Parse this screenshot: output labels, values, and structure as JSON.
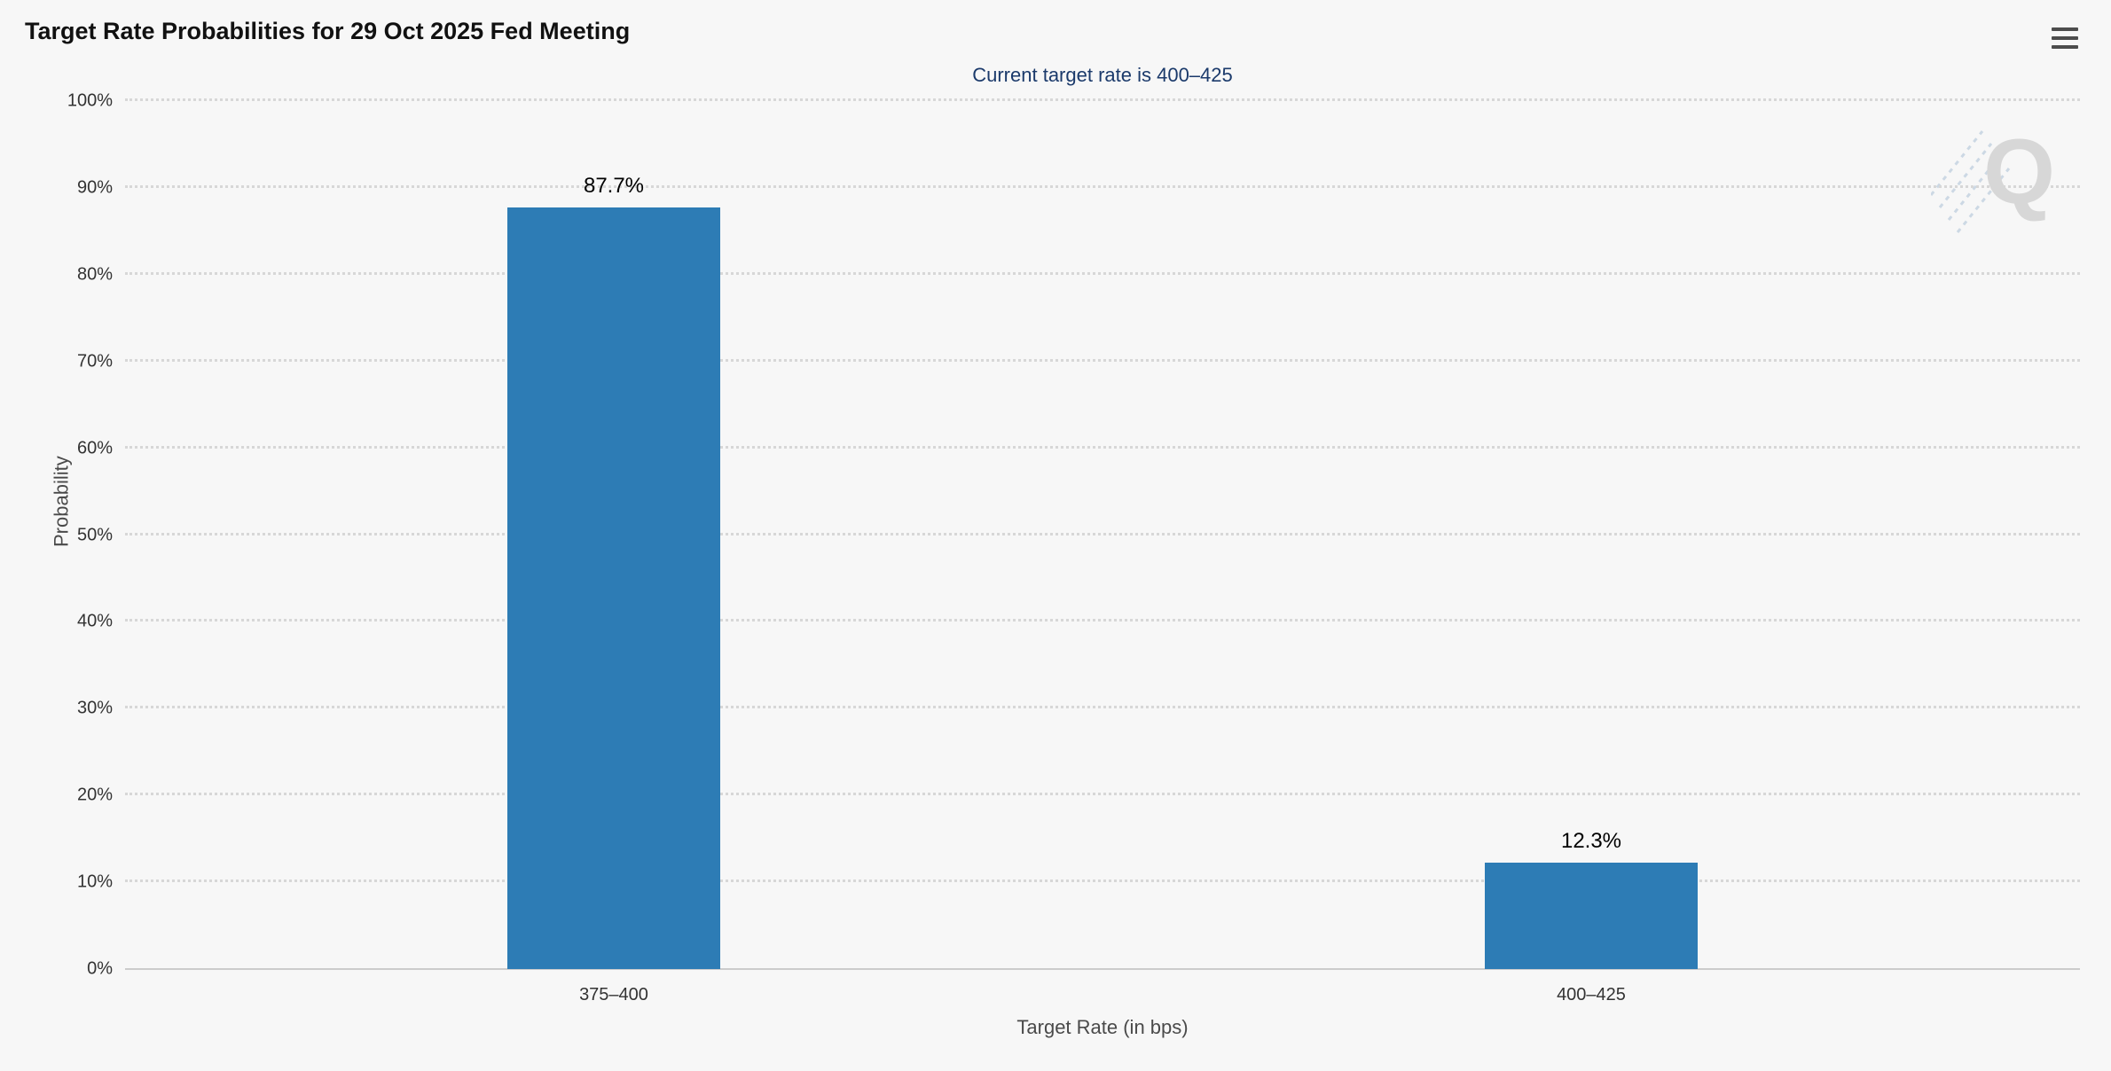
{
  "header": {
    "title": "Target Rate Probabilities for 29 Oct 2025 Fed Meeting",
    "menu_tooltip": "Chart context menu"
  },
  "chart_data": {
    "type": "bar",
    "title": "Target Rate Probabilities for 29 Oct 2025 Fed Meeting",
    "subtitle": "Current target rate is 400–425",
    "categories": [
      "375–400",
      "400–425"
    ],
    "values": [
      87.7,
      12.3
    ],
    "value_labels": [
      "87.7%",
      "12.3%"
    ],
    "xlabel": "Target Rate (in bps)",
    "ylabel": "Probability",
    "ylim": [
      0,
      100
    ],
    "ytick_step": 10,
    "ytick_suffix": "%",
    "grid": "horizontal-dotted",
    "legend": "none",
    "bar_color": "#2d7cb5"
  },
  "watermark": {
    "letter": "Q"
  },
  "colors": {
    "background": "#f7f7f7",
    "bar": "#2d7cb5",
    "subtitle": "#1b3a6b",
    "gridline": "#d7d7d7",
    "axis_line": "#cccccc",
    "tick_text": "#333333",
    "axis_title_text": "#4a4a4a",
    "watermark": "#d7d7d7"
  }
}
